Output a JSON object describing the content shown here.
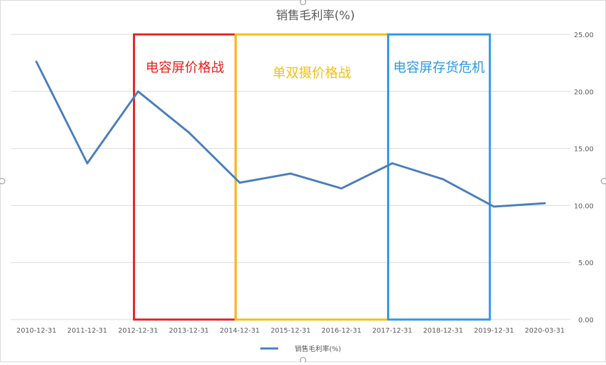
{
  "chart_data": {
    "type": "line",
    "title": "销售毛利率(%)",
    "categories": [
      "2010-12-31",
      "2011-12-31",
      "2012-12-31",
      "2013-12-31",
      "2014-12-31",
      "2015-12-31",
      "2016-12-31",
      "2017-12-31",
      "2018-12-31",
      "2019-12-31",
      "2020-03-31"
    ],
    "series": [
      {
        "name": "销售毛利率(%)",
        "color": "#4a7ebb",
        "values": [
          22.6,
          13.7,
          20.0,
          16.4,
          12.0,
          12.8,
          11.5,
          13.7,
          12.3,
          9.9,
          10.2
        ]
      }
    ],
    "ylim": [
      0,
      25
    ],
    "yticks": [
      "0.00",
      "5.00",
      "10.00",
      "15.00",
      "20.00",
      "25.00"
    ],
    "y_axis_side": "right",
    "grid": true,
    "legend": "bottom",
    "annotations": [
      {
        "label": "电容屏价格战",
        "color": "#e8201c",
        "from_category": 2,
        "to_category": 4
      },
      {
        "label": "单双摄价格战",
        "color": "#f3c010",
        "from_category": 4,
        "to_category": 7
      },
      {
        "label": "电容屏存货危机",
        "color": "#2b9ae3",
        "from_category": 7,
        "to_category": 9
      }
    ]
  }
}
